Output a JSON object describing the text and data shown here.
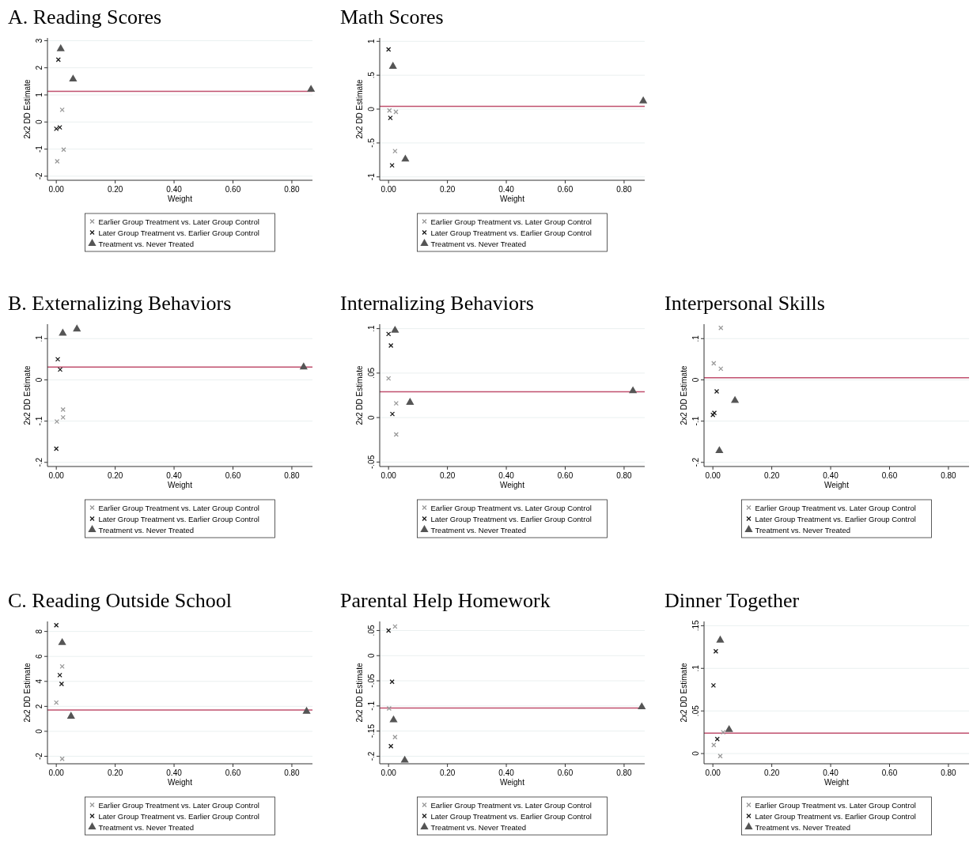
{
  "chart_data": [
    {
      "type": "scatter",
      "title": "A. Reading Scores",
      "xlabel": "Weight",
      "ylabel": "2x2 DD Estimate",
      "grid": "y",
      "legend": "bottom",
      "xlim": [
        -0.03,
        0.87
      ],
      "xticks": [
        {
          "value": 0,
          "label": "0.00"
        },
        {
          "value": 0.2,
          "label": "0.20"
        },
        {
          "value": 0.4,
          "label": "0.40"
        },
        {
          "value": 0.6,
          "label": "0.60"
        },
        {
          "value": 0.8,
          "label": "0.80"
        }
      ],
      "ylim": [
        -2.15,
        3.1
      ],
      "yticks": [
        -2,
        -1,
        0,
        1,
        2,
        3
      ],
      "ref_lines": [
        {
          "axis": "y",
          "value": 1.13,
          "color": "#c0506e"
        }
      ],
      "series": [
        {
          "name": "Earlier Group Treatment vs. Later Group Control",
          "color": "#999999",
          "marker": "cross",
          "x": [
            0.02,
            0.025,
            0.003
          ],
          "values": [
            0.45,
            -1.02,
            -1.45
          ]
        },
        {
          "name": "Later Group Treatment vs. Earlier Group Control",
          "color": "#1a1a1a",
          "marker": "cross",
          "x": [
            0.007,
            0.0,
            0.012
          ],
          "values": [
            2.3,
            -0.25,
            -0.2
          ]
        },
        {
          "name": "Treatment vs. Never Treated",
          "color": "#555555",
          "marker": "triangle",
          "x": [
            0.015,
            0.057,
            0.865
          ],
          "values": [
            2.7,
            1.58,
            1.2
          ]
        }
      ]
    },
    {
      "type": "scatter",
      "title": "Math Scores",
      "xlabel": "Weight",
      "ylabel": "2x2 DD Estimate",
      "grid": "y",
      "legend": "bottom",
      "xlim": [
        -0.03,
        0.87
      ],
      "xticks": [
        {
          "value": 0,
          "label": "0.00"
        },
        {
          "value": 0.2,
          "label": "0.20"
        },
        {
          "value": 0.4,
          "label": "0.40"
        },
        {
          "value": 0.6,
          "label": "0.60"
        },
        {
          "value": 0.8,
          "label": "0.80"
        }
      ],
      "ylim": [
        -1.05,
        1.05
      ],
      "yticks": [
        -1,
        {
          "value": -0.5,
          "label": "-.5"
        },
        0,
        {
          "value": 0.5,
          "label": ".5"
        },
        1
      ],
      "ref_lines": [
        {
          "axis": "y",
          "value": 0.04,
          "color": "#c0506e"
        }
      ],
      "series": [
        {
          "name": "Earlier Group Treatment vs. Later Group Control",
          "color": "#999999",
          "marker": "cross",
          "x": [
            0.003,
            0.025,
            0.022
          ],
          "values": [
            -0.02,
            -0.04,
            -0.62
          ]
        },
        {
          "name": "Later Group Treatment vs. Earlier Group Control",
          "color": "#1a1a1a",
          "marker": "cross",
          "x": [
            0.0,
            0.006,
            0.012
          ],
          "values": [
            0.88,
            -0.13,
            -0.83
          ]
        },
        {
          "name": "Treatment vs. Never Treated",
          "color": "#555555",
          "marker": "triangle",
          "x": [
            0.015,
            0.057,
            0.865
          ],
          "values": [
            0.63,
            -0.74,
            0.12
          ]
        }
      ]
    },
    {
      "type": "scatter",
      "title": "B. Externalizing Behaviors",
      "xlabel": "Weight",
      "ylabel": "2x2 DD Estimate",
      "grid": "y",
      "legend": "bottom",
      "xlim": [
        -0.03,
        0.87
      ],
      "xticks": [
        {
          "value": 0,
          "label": "0.00"
        },
        {
          "value": 0.2,
          "label": "0.20"
        },
        {
          "value": 0.4,
          "label": "0.40"
        },
        {
          "value": 0.6,
          "label": "0.60"
        },
        {
          "value": 0.8,
          "label": "0.80"
        }
      ],
      "ylim": [
        -0.21,
        0.135
      ],
      "yticks": [
        {
          "value": -0.2,
          "label": "-.2"
        },
        {
          "value": -0.1,
          "label": "-.1"
        },
        0,
        {
          "value": 0.1,
          "label": ".1"
        }
      ],
      "ref_lines": [
        {
          "axis": "y",
          "value": 0.031,
          "color": "#c0506e"
        }
      ],
      "series": [
        {
          "name": "Earlier Group Treatment vs. Later Group Control",
          "color": "#999999",
          "marker": "cross",
          "x": [
            0.002,
            0.023,
            0.023
          ],
          "values": [
            -0.101,
            -0.072,
            -0.091
          ]
        },
        {
          "name": "Later Group Treatment vs. Earlier Group Control",
          "color": "#1a1a1a",
          "marker": "cross",
          "x": [
            0.005,
            0.013,
            0.0
          ],
          "values": [
            0.05,
            0.025,
            -0.167
          ]
        },
        {
          "name": "Treatment vs. Never Treated",
          "color": "#555555",
          "marker": "triangle",
          "x": [
            0.022,
            0.07,
            0.84
          ],
          "values": [
            0.113,
            0.123,
            0.031
          ]
        }
      ]
    },
    {
      "type": "scatter",
      "title": "Internalizing Behaviors",
      "xlabel": "Weight",
      "ylabel": "2x2 DD Estimate",
      "grid": "y",
      "legend": "bottom",
      "xlim": [
        -0.03,
        0.87
      ],
      "xticks": [
        {
          "value": 0,
          "label": "0.00"
        },
        {
          "value": 0.2,
          "label": "0.20"
        },
        {
          "value": 0.4,
          "label": "0.40"
        },
        {
          "value": 0.6,
          "label": "0.60"
        },
        {
          "value": 0.8,
          "label": "0.80"
        }
      ],
      "ylim": [
        -0.055,
        0.105
      ],
      "yticks": [
        {
          "value": -0.05,
          "label": "-.05"
        },
        0,
        {
          "value": 0.05,
          "label": ".05"
        },
        {
          "value": 0.1,
          "label": ".1"
        }
      ],
      "ref_lines": [
        {
          "axis": "y",
          "value": 0.029,
          "color": "#c0506e"
        }
      ],
      "series": [
        {
          "name": "Earlier Group Treatment vs. Later Group Control",
          "color": "#999999",
          "marker": "cross",
          "x": [
            0.0,
            0.026,
            0.026
          ],
          "values": [
            0.044,
            0.016,
            -0.019
          ]
        },
        {
          "name": "Later Group Treatment vs. Earlier Group Control",
          "color": "#1a1a1a",
          "marker": "cross",
          "x": [
            0.0,
            0.008,
            0.013
          ],
          "values": [
            0.094,
            0.081,
            0.004
          ]
        },
        {
          "name": "Treatment vs. Never Treated",
          "color": "#555555",
          "marker": "triangle",
          "x": [
            0.022,
            0.073,
            0.83
          ],
          "values": [
            0.098,
            0.017,
            0.03
          ]
        }
      ]
    },
    {
      "type": "scatter",
      "title": "Interpersonal Skills",
      "xlabel": "Weight",
      "ylabel": "2x2 DD Estimate",
      "grid": "y",
      "legend": "bottom",
      "xlim": [
        -0.03,
        0.87
      ],
      "xticks": [
        {
          "value": 0,
          "label": "0.00"
        },
        {
          "value": 0.2,
          "label": "0.20"
        },
        {
          "value": 0.4,
          "label": "0.40"
        },
        {
          "value": 0.6,
          "label": "0.60"
        },
        {
          "value": 0.8,
          "label": "0.80"
        }
      ],
      "ylim": [
        -0.21,
        0.135
      ],
      "yticks": [
        {
          "value": -0.2,
          "label": "-.2"
        },
        {
          "value": -0.1,
          "label": "-.1"
        },
        0,
        {
          "value": 0.1,
          "label": ".1"
        }
      ],
      "ref_lines": [
        {
          "axis": "y",
          "value": 0.005,
          "color": "#c0506e"
        }
      ],
      "series": [
        {
          "name": "Earlier Group Treatment vs. Later Group Control",
          "color": "#999999",
          "marker": "cross",
          "x": [
            0.003,
            0.027,
            0.027
          ],
          "values": [
            0.04,
            0.126,
            0.027
          ]
        },
        {
          "name": "Later Group Treatment vs. Earlier Group Control",
          "color": "#1a1a1a",
          "marker": "cross",
          "x": [
            0.013,
            0.0,
            0.005
          ],
          "values": [
            -0.028,
            -0.085,
            -0.08
          ]
        },
        {
          "name": "Treatment vs. Never Treated",
          "color": "#555555",
          "marker": "triangle",
          "x": [
            0.022,
            0.075
          ],
          "values": [
            -0.172,
            -0.05
          ]
        }
      ]
    },
    {
      "type": "scatter",
      "title": "C. Reading Outside School",
      "xlabel": "Weight",
      "ylabel": "2x2 DD Estimate",
      "grid": "y",
      "legend": "bottom",
      "xlim": [
        -0.03,
        0.87
      ],
      "xticks": [
        {
          "value": 0,
          "label": "0.00"
        },
        {
          "value": 0.2,
          "label": "0.20"
        },
        {
          "value": 0.4,
          "label": "0.40"
        },
        {
          "value": 0.6,
          "label": "0.60"
        },
        {
          "value": 0.8,
          "label": "0.80"
        }
      ],
      "ylim": [
        -2.6,
        8.8
      ],
      "yticks": [
        -2,
        0,
        2,
        4,
        6,
        8
      ],
      "ref_lines": [
        {
          "axis": "y",
          "value": 1.7,
          "color": "#c0506e"
        }
      ],
      "series": [
        {
          "name": "Earlier Group Treatment vs. Later Group Control",
          "color": "#999999",
          "marker": "cross",
          "x": [
            0.0,
            0.02,
            0.02
          ],
          "values": [
            2.3,
            5.2,
            -2.2
          ]
        },
        {
          "name": "Later Group Treatment vs. Earlier Group Control",
          "color": "#1a1a1a",
          "marker": "cross",
          "x": [
            0.0,
            0.012,
            0.018
          ],
          "values": [
            8.5,
            4.5,
            3.8
          ]
        },
        {
          "name": "Treatment vs. Never Treated",
          "color": "#555555",
          "marker": "triangle",
          "x": [
            0.02,
            0.05,
            0.85
          ],
          "values": [
            7.1,
            1.2,
            1.6
          ]
        }
      ]
    },
    {
      "type": "scatter",
      "title": "Parental Help Homework",
      "xlabel": "Weight",
      "ylabel": "2x2 DD Estimate",
      "grid": "y",
      "legend": "bottom",
      "xlim": [
        -0.03,
        0.87
      ],
      "xticks": [
        {
          "value": 0,
          "label": "0.00"
        },
        {
          "value": 0.2,
          "label": "0.20"
        },
        {
          "value": 0.4,
          "label": "0.40"
        },
        {
          "value": 0.6,
          "label": "0.60"
        },
        {
          "value": 0.8,
          "label": "0.80"
        }
      ],
      "ylim": [
        -0.215,
        0.068
      ],
      "yticks": [
        {
          "value": -0.2,
          "label": "-.2"
        },
        {
          "value": -0.15,
          "label": "-.15"
        },
        {
          "value": -0.1,
          "label": "-.1"
        },
        {
          "value": -0.05,
          "label": "-.05"
        },
        0,
        {
          "value": 0.05,
          "label": ".05"
        }
      ],
      "ref_lines": [
        {
          "axis": "y",
          "value": -0.104,
          "color": "#c0506e"
        }
      ],
      "series": [
        {
          "name": "Earlier Group Treatment vs. Later Group Control",
          "color": "#999999",
          "marker": "cross",
          "x": [
            0.022,
            0.002,
            0.022
          ],
          "values": [
            0.058,
            -0.105,
            -0.162
          ]
        },
        {
          "name": "Later Group Treatment vs. Earlier Group Control",
          "color": "#1a1a1a",
          "marker": "cross",
          "x": [
            0.0,
            0.012,
            0.008
          ],
          "values": [
            0.05,
            -0.052,
            -0.18
          ]
        },
        {
          "name": "Treatment vs. Never Treated",
          "color": "#555555",
          "marker": "triangle",
          "x": [
            0.017,
            0.055,
            0.86
          ],
          "values": [
            -0.128,
            -0.208,
            -0.102
          ]
        }
      ]
    },
    {
      "type": "scatter",
      "title": "Dinner Together",
      "xlabel": "Weight",
      "ylabel": "2x2 DD Estimate",
      "grid": "y",
      "legend": "bottom",
      "xlim": [
        -0.03,
        0.87
      ],
      "xticks": [
        {
          "value": 0,
          "label": "0.00"
        },
        {
          "value": 0.2,
          "label": "0.20"
        },
        {
          "value": 0.4,
          "label": "0.40"
        },
        {
          "value": 0.6,
          "label": "0.60"
        },
        {
          "value": 0.8,
          "label": "0.80"
        }
      ],
      "ylim": [
        -0.012,
        0.155
      ],
      "yticks": [
        0,
        {
          "value": 0.05,
          "label": ".05"
        },
        {
          "value": 0.1,
          "label": ".1"
        },
        {
          "value": 0.15,
          "label": ".15"
        }
      ],
      "ref_lines": [
        {
          "axis": "y",
          "value": 0.024,
          "color": "#c0506e"
        }
      ],
      "series": [
        {
          "name": "Earlier Group Treatment vs. Later Group Control",
          "color": "#999999",
          "marker": "cross",
          "x": [
            0.003,
            0.025,
            0.035
          ],
          "values": [
            0.01,
            -0.003,
            0.025
          ]
        },
        {
          "name": "Later Group Treatment vs. Earlier Group Control",
          "color": "#1a1a1a",
          "marker": "cross",
          "x": [
            0.002,
            0.01,
            0.015
          ],
          "values": [
            0.08,
            0.12,
            0.017
          ]
        },
        {
          "name": "Treatment vs. Never Treated",
          "color": "#555555",
          "marker": "triangle",
          "x": [
            0.025,
            0.055
          ],
          "values": [
            0.133,
            0.028
          ]
        }
      ]
    }
  ]
}
